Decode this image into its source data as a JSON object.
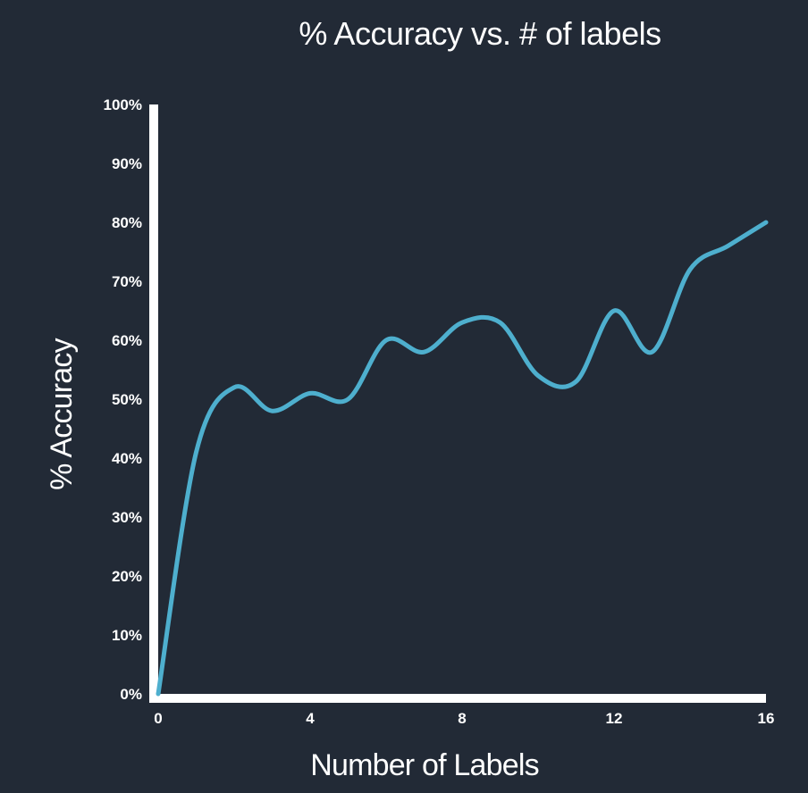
{
  "chart_data": {
    "type": "line",
    "title": "% Accuracy vs. # of labels",
    "xlabel": "Number of Labels",
    "ylabel": "% Accuracy",
    "xlim": [
      0,
      16
    ],
    "ylim": [
      0,
      100
    ],
    "x_ticks": [
      {
        "value": 0,
        "label": "0"
      },
      {
        "value": 4,
        "label": "4"
      },
      {
        "value": 8,
        "label": "8"
      },
      {
        "value": 12,
        "label": "12"
      },
      {
        "value": 16,
        "label": "16"
      }
    ],
    "y_ticks": [
      {
        "value": 0,
        "label": "0%"
      },
      {
        "value": 10,
        "label": "10%"
      },
      {
        "value": 20,
        "label": "20%"
      },
      {
        "value": 30,
        "label": "30%"
      },
      {
        "value": 40,
        "label": "40%"
      },
      {
        "value": 50,
        "label": "50%"
      },
      {
        "value": 60,
        "label": "60%"
      },
      {
        "value": 70,
        "label": "70%"
      },
      {
        "value": 80,
        "label": "80%"
      },
      {
        "value": 90,
        "label": "90%"
      },
      {
        "value": 100,
        "label": "100%"
      }
    ],
    "grid": false,
    "series": [
      {
        "color": "#4eafce",
        "x": [
          0,
          1,
          2,
          3,
          4,
          5,
          6,
          7,
          8,
          9,
          10,
          11,
          12,
          13,
          14,
          15,
          16
        ],
        "values": [
          0,
          41,
          52,
          48,
          51,
          50,
          60,
          58,
          63,
          63,
          54,
          53,
          65,
          58,
          72,
          76,
          80
        ]
      }
    ]
  },
  "colors": {
    "background": "#222a36",
    "axis": "#ffffff",
    "text": "#ffffff",
    "line": "#4eafce"
  }
}
